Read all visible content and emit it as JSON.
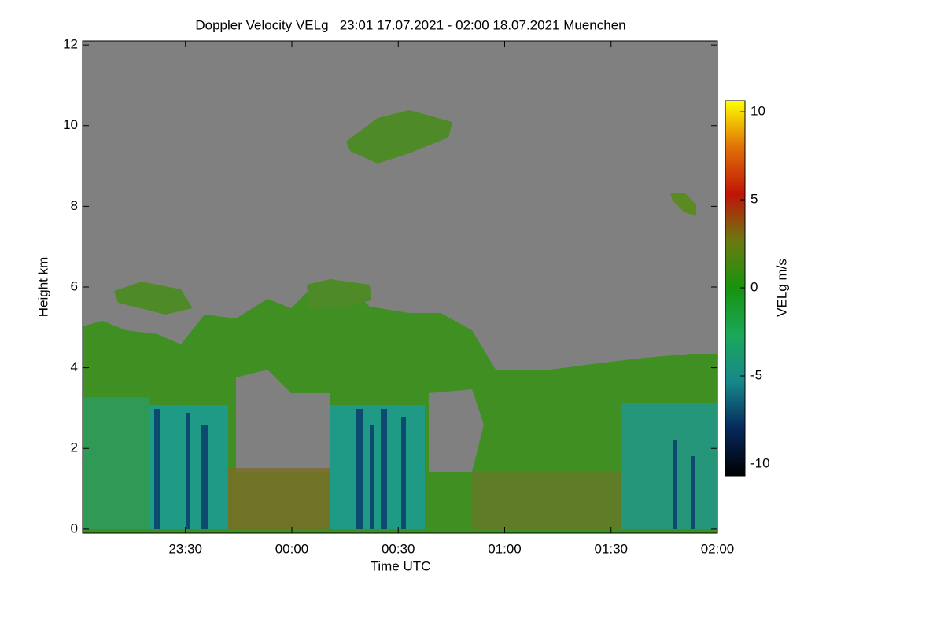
{
  "chart_data": {
    "type": "heatmap",
    "title": "Doppler Velocity VELg   23:01 17.07.2021 - 02:00 18.07.2021 Muenchen",
    "x_label": "Time UTC",
    "y_label": "Height km",
    "xlim": [
      23.0167,
      26.0
    ],
    "xticks": [
      {
        "value": 23.5,
        "label": "23:30"
      },
      {
        "value": 24.0,
        "label": "00:00"
      },
      {
        "value": 24.5,
        "label": "00:30"
      },
      {
        "value": 25.0,
        "label": "01:00"
      },
      {
        "value": 25.5,
        "label": "01:30"
      },
      {
        "value": 26.0,
        "label": "02:00"
      }
    ],
    "ylim": [
      -0.1,
      12.1
    ],
    "yticks": [
      0,
      2,
      4,
      6,
      8,
      10,
      12
    ],
    "colorbar": {
      "label": "VELg m/s",
      "lim": [
        -10.67,
        10.63
      ],
      "ticks": [
        -10,
        -5,
        0,
        5,
        10
      ],
      "colormap": [
        "#000000",
        "#06285c",
        "#16888a",
        "#1aa85a",
        "#17930f",
        "#6b7a10",
        "#c01408",
        "#e07008",
        "#ffff00"
      ]
    }
  }
}
